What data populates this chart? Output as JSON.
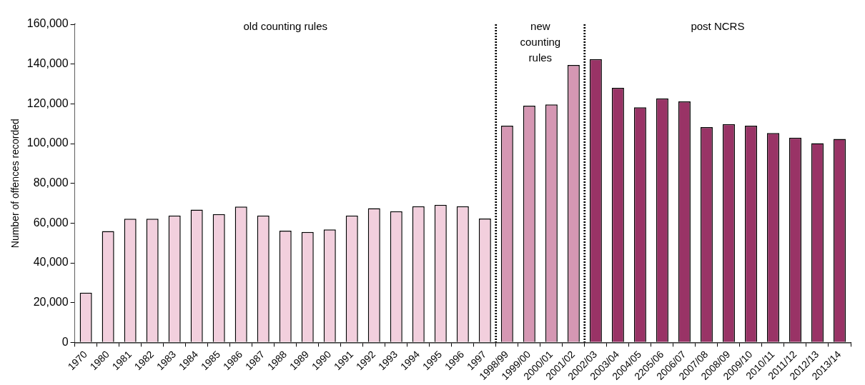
{
  "chart_data": {
    "type": "bar",
    "ylabel": "Number of offences recorded",
    "categories": [
      "1970",
      "1980",
      "1981",
      "1982",
      "1983",
      "1984",
      "1985",
      "1986",
      "1987",
      "1988",
      "1989",
      "1990",
      "1991",
      "1992",
      "1993",
      "1994",
      "1995",
      "1996",
      "1997",
      "1998/99",
      "1999/00",
      "2000/01",
      "2001/02",
      "2002/03",
      "2003/04",
      "2004/05",
      "2205/06",
      "2006/07",
      "2007/08",
      "2008/09",
      "2009/10",
      "2010/11",
      "2011/12",
      "2012/13",
      "2013/14"
    ],
    "values": [
      25000,
      56000,
      62200,
      62200,
      63800,
      66800,
      64500,
      68300,
      63800,
      56200,
      55500,
      56800,
      63800,
      67500,
      66000,
      68500,
      69200,
      68500,
      62300,
      109000,
      119000,
      119700,
      139500,
      142500,
      128000,
      118200,
      122700,
      121200,
      108300,
      109800,
      109000,
      105300,
      103000,
      100200,
      102300
    ],
    "colors": [
      "#f2cfdd",
      "#f2cfdd",
      "#f2cfdd",
      "#f2cfdd",
      "#f2cfdd",
      "#f2cfdd",
      "#f2cfdd",
      "#f2cfdd",
      "#f2cfdd",
      "#f2cfdd",
      "#f2cfdd",
      "#f2cfdd",
      "#f2cfdd",
      "#f2cfdd",
      "#f2cfdd",
      "#f2cfdd",
      "#f2cfdd",
      "#f2cfdd",
      "#f2cfdd",
      "#d597b3",
      "#d597b3",
      "#d597b3",
      "#d597b3",
      "#993366",
      "#993366",
      "#993366",
      "#993366",
      "#993366",
      "#993366",
      "#993366",
      "#993366",
      "#993366",
      "#993366",
      "#993366",
      "#993366"
    ],
    "ylim": [
      0,
      160000
    ],
    "yticks": [
      0,
      {
        "value": 20000,
        "label": "20,000"
      },
      {
        "value": 40000,
        "label": "40,000"
      },
      {
        "value": 60000,
        "label": "60,000"
      },
      {
        "value": 80000,
        "label": "80,000"
      },
      {
        "value": 100000,
        "label": "100,000"
      },
      {
        "value": 120000,
        "label": "120,000"
      },
      {
        "value": 140000,
        "label": "140,000"
      },
      {
        "value": 160000,
        "label": "160,000"
      }
    ],
    "grid": false,
    "legend": false,
    "bands": [
      {
        "axis": "x",
        "from": "1970",
        "to": "1997",
        "label": "old counting rules",
        "color": "#ffffff"
      },
      {
        "axis": "x",
        "from": "1998/99",
        "to": "2001/02",
        "label": "new counting rules",
        "color": "#ffffff"
      },
      {
        "axis": "x",
        "from": "2002/03",
        "to": "2013/14",
        "label": "post NCRS",
        "color": "#ffffff"
      }
    ]
  }
}
